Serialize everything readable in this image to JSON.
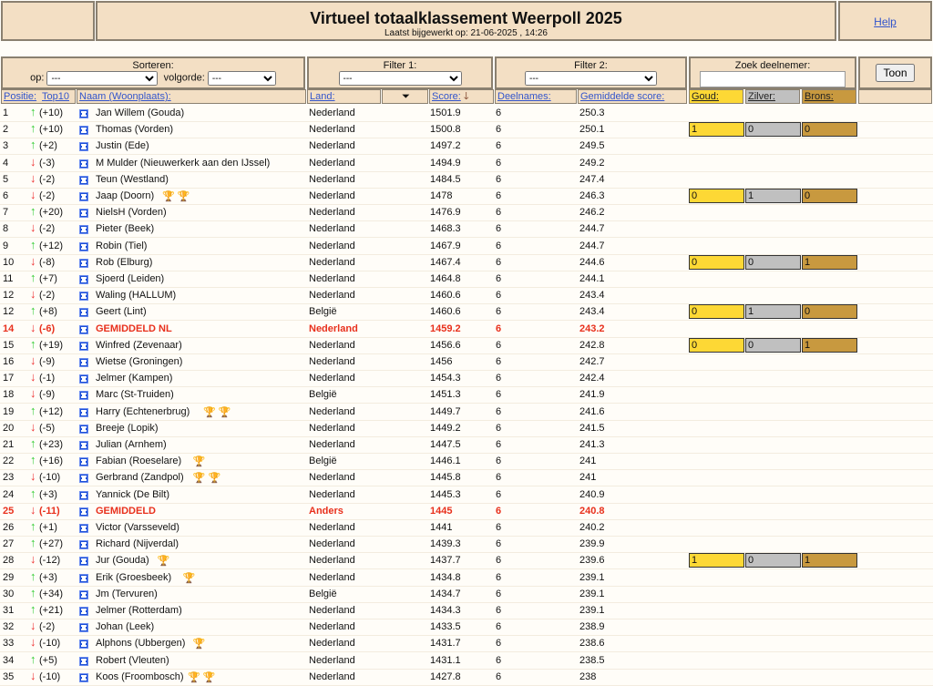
{
  "header": {
    "title": "Virtueel totaalklassement Weerpoll 2025",
    "updated": "Laatst bijgewerkt op: 21-06-2025 , 14:26",
    "help": "Help"
  },
  "controls": {
    "sort_label": "Sorteren:",
    "op_label": "op:",
    "op_value": "---",
    "order_label": "volgorde:",
    "order_value": "---",
    "filter1_label": "Filter 1:",
    "filter1_value": "---",
    "filter2_label": "Filter 2:",
    "filter2_value": "---",
    "search_label": "Zoek deelnemer:",
    "search_value": "",
    "show_button": "Toon"
  },
  "columns": {
    "position": "Positie:",
    "top10": "Top10",
    "name": "Naam (Woonplaats):",
    "country": "Land:",
    "score": "Score:",
    "entries": "Deelnames:",
    "avg": "Gemiddelde score:",
    "gold": "Goud:",
    "silver": "Zilver:",
    "bronze": "Brons:"
  },
  "colors": {
    "gold": "#fdd835",
    "silver": "#c0c0c0",
    "bronze": "#c8993f",
    "highlight": "#e8301c"
  },
  "rows": [
    {
      "pos": "1",
      "dir": "up",
      "chg": "(+10)",
      "name": "Jan Willem (Gouda)",
      "land": "Nederland",
      "score": "1501.9",
      "n": "6",
      "avg": "250.3"
    },
    {
      "pos": "2",
      "dir": "up",
      "chg": "(+10)",
      "name": "Thomas (Vorden)",
      "land": "Nederland",
      "score": "1500.8",
      "n": "6",
      "avg": "250.1",
      "medals": [
        "1",
        "0",
        "0"
      ]
    },
    {
      "pos": "3",
      "dir": "up",
      "chg": "(+2)",
      "name": "Justin (Ede)",
      "land": "Nederland",
      "score": "1497.2",
      "n": "6",
      "avg": "249.5"
    },
    {
      "pos": "4",
      "dir": "down",
      "chg": "(-3)",
      "name": "M Mulder (Nieuwerkerk aan den IJssel)",
      "land": "Nederland",
      "score": "1494.9",
      "n": "6",
      "avg": "249.2"
    },
    {
      "pos": "5",
      "dir": "down",
      "chg": "(-2)",
      "name": "Teun (Westland)",
      "land": "Nederland",
      "score": "1484.5",
      "n": "6",
      "avg": "247.4"
    },
    {
      "pos": "6",
      "dir": "down",
      "chg": "(-2)",
      "name": "Jaap (Doorn)",
      "trophies": [
        "silver",
        "silver"
      ],
      "land": "Nederland",
      "score": "1478",
      "n": "6",
      "avg": "246.3",
      "medals": [
        "0",
        "1",
        "0"
      ]
    },
    {
      "pos": "7",
      "dir": "up",
      "chg": "(+20)",
      "name": "NielsH (Vorden)",
      "land": "Nederland",
      "score": "1476.9",
      "n": "6",
      "avg": "246.2"
    },
    {
      "pos": "8",
      "dir": "down",
      "chg": "(-2)",
      "name": "Pieter (Beek)",
      "land": "Nederland",
      "score": "1468.3",
      "n": "6",
      "avg": "244.7"
    },
    {
      "pos": "9",
      "dir": "up",
      "chg": "(+12)",
      "name": "Robin (Tiel)",
      "land": "Nederland",
      "score": "1467.9",
      "n": "6",
      "avg": "244.7"
    },
    {
      "pos": "10",
      "dir": "down",
      "chg": "(-8)",
      "name": "Rob (Elburg)",
      "land": "Nederland",
      "score": "1467.4",
      "n": "6",
      "avg": "244.6",
      "medals": [
        "0",
        "0",
        "1"
      ]
    },
    {
      "pos": "11",
      "dir": "up",
      "chg": "(+7)",
      "name": "Sjoerd (Leiden)",
      "land": "Nederland",
      "score": "1464.8",
      "n": "6",
      "avg": "244.1"
    },
    {
      "pos": "12",
      "dir": "down",
      "chg": "(-2)",
      "name": "Waling (HALLUM)",
      "land": "Nederland",
      "score": "1460.6",
      "n": "6",
      "avg": "243.4"
    },
    {
      "pos": "12",
      "dir": "up",
      "chg": "(+8)",
      "name": "Geert (Lint)",
      "land": "België",
      "score": "1460.6",
      "n": "6",
      "avg": "243.4",
      "medals": [
        "0",
        "1",
        "0"
      ]
    },
    {
      "pos": "14",
      "dir": "down",
      "chg": "(-6)",
      "name": "GEMIDDELD NL",
      "land": "Nederland",
      "score": "1459.2",
      "n": "6",
      "avg": "243.2",
      "highlight": true
    },
    {
      "pos": "15",
      "dir": "up",
      "chg": "(+19)",
      "name": "Winfred (Zevenaar)",
      "land": "Nederland",
      "score": "1456.6",
      "n": "6",
      "avg": "242.8",
      "medals": [
        "0",
        "0",
        "1"
      ]
    },
    {
      "pos": "16",
      "dir": "down",
      "chg": "(-9)",
      "name": "Wietse (Groningen)",
      "land": "Nederland",
      "score": "1456",
      "n": "6",
      "avg": "242.7"
    },
    {
      "pos": "17",
      "dir": "down",
      "chg": "(-1)",
      "name": "Jelmer (Kampen)",
      "land": "Nederland",
      "score": "1454.3",
      "n": "6",
      "avg": "242.4"
    },
    {
      "pos": "18",
      "dir": "down",
      "chg": "(-9)",
      "name": "Marc (St-Truiden)",
      "land": "België",
      "score": "1451.3",
      "n": "6",
      "avg": "241.9"
    },
    {
      "pos": "19",
      "dir": "up",
      "chg": "(+12)",
      "name": "Harry (Echtenerbrug)",
      "trophies": [
        "gold",
        "silver"
      ],
      "land": "Nederland",
      "score": "1449.7",
      "n": "6",
      "avg": "241.6"
    },
    {
      "pos": "20",
      "dir": "down",
      "chg": "(-5)",
      "name": "Breeje (Lopik)",
      "land": "Nederland",
      "score": "1449.2",
      "n": "6",
      "avg": "241.5"
    },
    {
      "pos": "21",
      "dir": "up",
      "chg": "(+23)",
      "name": "Julian (Arnhem)",
      "land": "Nederland",
      "score": "1447.5",
      "n": "6",
      "avg": "241.3"
    },
    {
      "pos": "22",
      "dir": "up",
      "chg": "(+16)",
      "name": "Fabian (Roeselare)",
      "trophies": [
        "gold"
      ],
      "land": "België",
      "score": "1446.1",
      "n": "6",
      "avg": "241"
    },
    {
      "pos": "23",
      "dir": "down",
      "chg": "(-10)",
      "name": "Gerbrand (Zandpol)",
      "trophies": [
        "bronze",
        "bronze"
      ],
      "land": "Nederland",
      "score": "1445.8",
      "n": "6",
      "avg": "241"
    },
    {
      "pos": "24",
      "dir": "up",
      "chg": "(+3)",
      "name": "Yannick (De Bilt)",
      "land": "Nederland",
      "score": "1445.3",
      "n": "6",
      "avg": "240.9"
    },
    {
      "pos": "25",
      "dir": "down",
      "chg": "(-11)",
      "name": "GEMIDDELD",
      "land": "Anders",
      "score": "1445",
      "n": "6",
      "avg": "240.8",
      "highlight": true
    },
    {
      "pos": "26",
      "dir": "up",
      "chg": "(+1)",
      "name": "Victor (Varsseveld)",
      "land": "Nederland",
      "score": "1441",
      "n": "6",
      "avg": "240.2"
    },
    {
      "pos": "27",
      "dir": "up",
      "chg": "(+27)",
      "name": "Richard (Nijverdal)",
      "land": "Nederland",
      "score": "1439.3",
      "n": "6",
      "avg": "239.9"
    },
    {
      "pos": "28",
      "dir": "down",
      "chg": "(-12)",
      "name": "Jur (Gouda)",
      "trophies": [
        "gold"
      ],
      "land": "Nederland",
      "score": "1437.7",
      "n": "6",
      "avg": "239.6",
      "medals": [
        "1",
        "0",
        "1"
      ]
    },
    {
      "pos": "29",
      "dir": "up",
      "chg": "(+3)",
      "name": "Erik (Groesbeek)",
      "trophies": [
        "gold"
      ],
      "land": "Nederland",
      "score": "1434.8",
      "n": "6",
      "avg": "239.1"
    },
    {
      "pos": "30",
      "dir": "up",
      "chg": "(+34)",
      "name": "Jm (Tervuren)",
      "land": "België",
      "score": "1434.7",
      "n": "6",
      "avg": "239.1"
    },
    {
      "pos": "31",
      "dir": "up",
      "chg": "(+21)",
      "name": "Jelmer (Rotterdam)",
      "land": "Nederland",
      "score": "1434.3",
      "n": "6",
      "avg": "239.1"
    },
    {
      "pos": "32",
      "dir": "down",
      "chg": "(-2)",
      "name": "Johan (Leek)",
      "land": "Nederland",
      "score": "1433.5",
      "n": "6",
      "avg": "238.9"
    },
    {
      "pos": "33",
      "dir": "down",
      "chg": "(-10)",
      "name": "Alphons (Ubbergen)",
      "trophies": [
        "bronze"
      ],
      "land": "Nederland",
      "score": "1431.7",
      "n": "6",
      "avg": "238.6"
    },
    {
      "pos": "34",
      "dir": "up",
      "chg": "(+5)",
      "name": "Robert (Vleuten)",
      "land": "Nederland",
      "score": "1431.1",
      "n": "6",
      "avg": "238.5"
    },
    {
      "pos": "35",
      "dir": "down",
      "chg": "(-10)",
      "name": "Koos (Froombosch)",
      "trophies": [
        "gold",
        "gold"
      ],
      "land": "Nederland",
      "score": "1427.8",
      "n": "6",
      "avg": "238"
    }
  ]
}
